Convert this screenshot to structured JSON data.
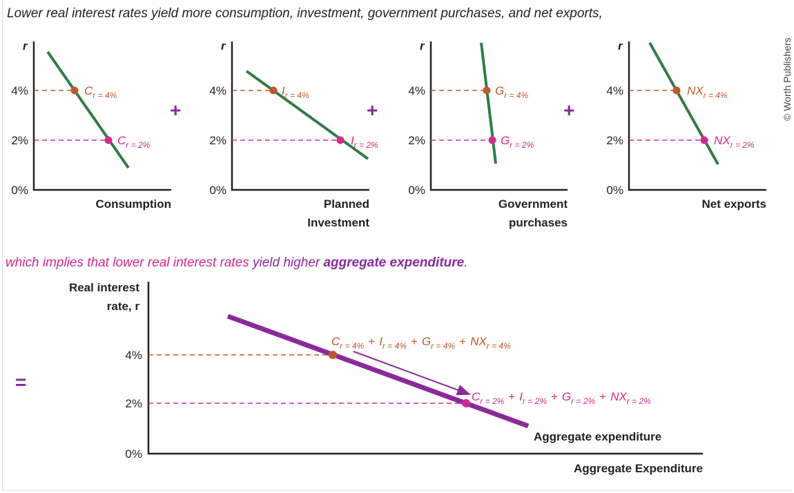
{
  "caption_top": "Lower real interest rates yield more consumption, investment, government purchases, and net exports,",
  "caption_mid": {
    "pink": "which implies that lower real interest rates ",
    "purple": "yield higher ",
    "bold": "aggregate expenditure",
    "end": "."
  },
  "copyright": "© Worth Publishers",
  "colors": {
    "green": "#2e7d46",
    "orange": "#c0582a",
    "pink": "#d6288f",
    "purple": "#8a2a9a"
  },
  "operators": {
    "plus": "+",
    "equals": "="
  },
  "panels": [
    {
      "y_axis": "r",
      "ticks": [
        "4%",
        "2%",
        "0%"
      ],
      "title": [
        "Consumption"
      ],
      "high": {
        "main": "C",
        "sub": "r = 4%"
      },
      "low": {
        "main": "C",
        "sub": "r = 2%"
      }
    },
    {
      "y_axis": "r",
      "ticks": [
        "4%",
        "2%",
        "0%"
      ],
      "title": [
        "Planned",
        "Investment"
      ],
      "high": {
        "main": "I",
        "sub": "r = 4%"
      },
      "low": {
        "main": "I",
        "sub": "r = 2%"
      }
    },
    {
      "y_axis": "r",
      "ticks": [
        "4%",
        "2%",
        "0%"
      ],
      "title": [
        "Government",
        "purchases"
      ],
      "high": {
        "main": "G",
        "sub": "r = 4%"
      },
      "low": {
        "main": "G",
        "sub": "r = 2%"
      }
    },
    {
      "y_axis": "r",
      "ticks": [
        "4%",
        "2%",
        "0%"
      ],
      "title": [
        "Net exports"
      ],
      "high": {
        "main": "NX",
        "sub": "r = 4%"
      },
      "low": {
        "main": "NX",
        "sub": "r = 2%"
      }
    }
  ],
  "aggregate": {
    "y_axis": [
      "Real interest",
      "rate, r"
    ],
    "x_axis": "Aggregate Expenditure",
    "ticks": [
      "4%",
      "2%",
      "0%"
    ],
    "curve_label": "Aggregate expenditure",
    "high": [
      {
        "main": "C",
        "sub": "r = 4%"
      },
      {
        "main": "I",
        "sub": "r = 4%"
      },
      {
        "main": "G",
        "sub": "r = 4%"
      },
      {
        "main": "NX",
        "sub": "r = 4%"
      }
    ],
    "low": [
      {
        "main": "C",
        "sub": "r = 2%"
      },
      {
        "main": "I",
        "sub": "r = 2%"
      },
      {
        "main": "G",
        "sub": "r = 2%"
      },
      {
        "main": "NX",
        "sub": "r = 2%"
      }
    ]
  }
}
